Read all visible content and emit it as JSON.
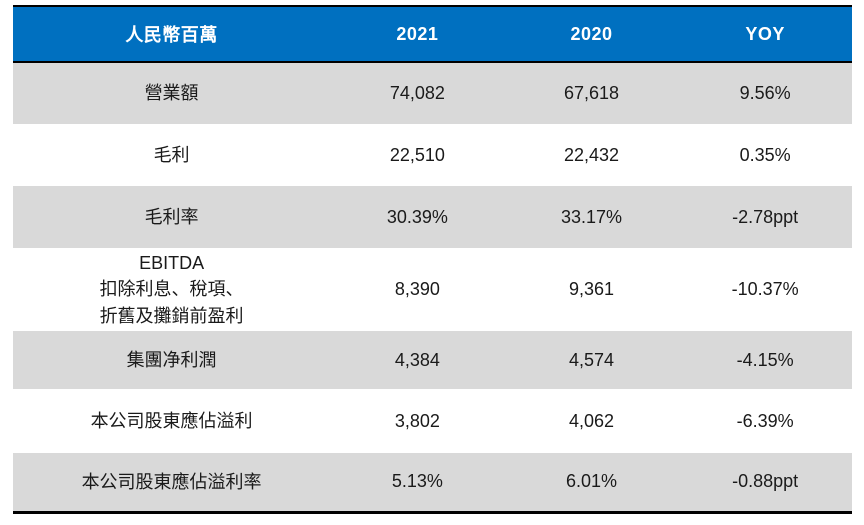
{
  "colors": {
    "header_bg": "#0070C0",
    "header_text": "#FFFFFF",
    "row_alt_bg": "#D9D9D9",
    "row_plain_bg": "#FFFFFF",
    "border": "#000000",
    "body_text": "#1A1A1A"
  },
  "table": {
    "header": {
      "unit_label": "人民幣百萬",
      "columns": [
        "2021",
        "2020",
        "YOY"
      ]
    },
    "rows": [
      {
        "label": "營業額",
        "y2021": "74,082",
        "y2020": "67,618",
        "yoy": "9.56%"
      },
      {
        "label": "毛利",
        "y2021": "22,510",
        "y2020": "22,432",
        "yoy": "0.35%"
      },
      {
        "label": "毛利率",
        "y2021": "30.39%",
        "y2020": "33.17%",
        "yoy": "-2.78ppt"
      },
      {
        "label": "EBITDA\n扣除利息、稅項、\n折舊及攤銷前盈利",
        "y2021": "8,390",
        "y2020": "9,361",
        "yoy": "-10.37%"
      },
      {
        "label": "集團净利潤",
        "y2021": "4,384",
        "y2020": "4,574",
        "yoy": "-4.15%"
      },
      {
        "label": "本公司股東應佔溢利",
        "y2021": "3,802",
        "y2020": "4,062",
        "yoy": "-6.39%"
      },
      {
        "label": "本公司股東應佔溢利率",
        "y2021": "5.13%",
        "y2020": "6.01%",
        "yoy": "-0.88ppt"
      }
    ]
  },
  "chart_data": {
    "type": "table",
    "title": "",
    "unit": "人民幣百萬",
    "columns": [
      "人民幣百萬",
      "2021",
      "2020",
      "YOY"
    ],
    "rows": [
      [
        "營業額",
        "74,082",
        "67,618",
        "9.56%"
      ],
      [
        "毛利",
        "22,510",
        "22,432",
        "0.35%"
      ],
      [
        "毛利率",
        "30.39%",
        "33.17%",
        "-2.78ppt"
      ],
      [
        "EBITDA 扣除利息、稅項、折舊及攤銷前盈利",
        "8,390",
        "9,361",
        "-10.37%"
      ],
      [
        "集團净利潤",
        "4,384",
        "4,574",
        "-4.15%"
      ],
      [
        "本公司股東應佔溢利",
        "3,802",
        "4,062",
        "-6.39%"
      ],
      [
        "本公司股東應佔溢利率",
        "5.13%",
        "6.01%",
        "-0.88ppt"
      ]
    ],
    "layout_hints": {
      "header_style": "blue background, white bold text",
      "row_striping": "odd data rows gray (#D9D9D9), even rows white",
      "borders": "thick black line above header, below header, and at table bottom; no vertical gridlines",
      "alignment": "all cells center-aligned"
    }
  }
}
